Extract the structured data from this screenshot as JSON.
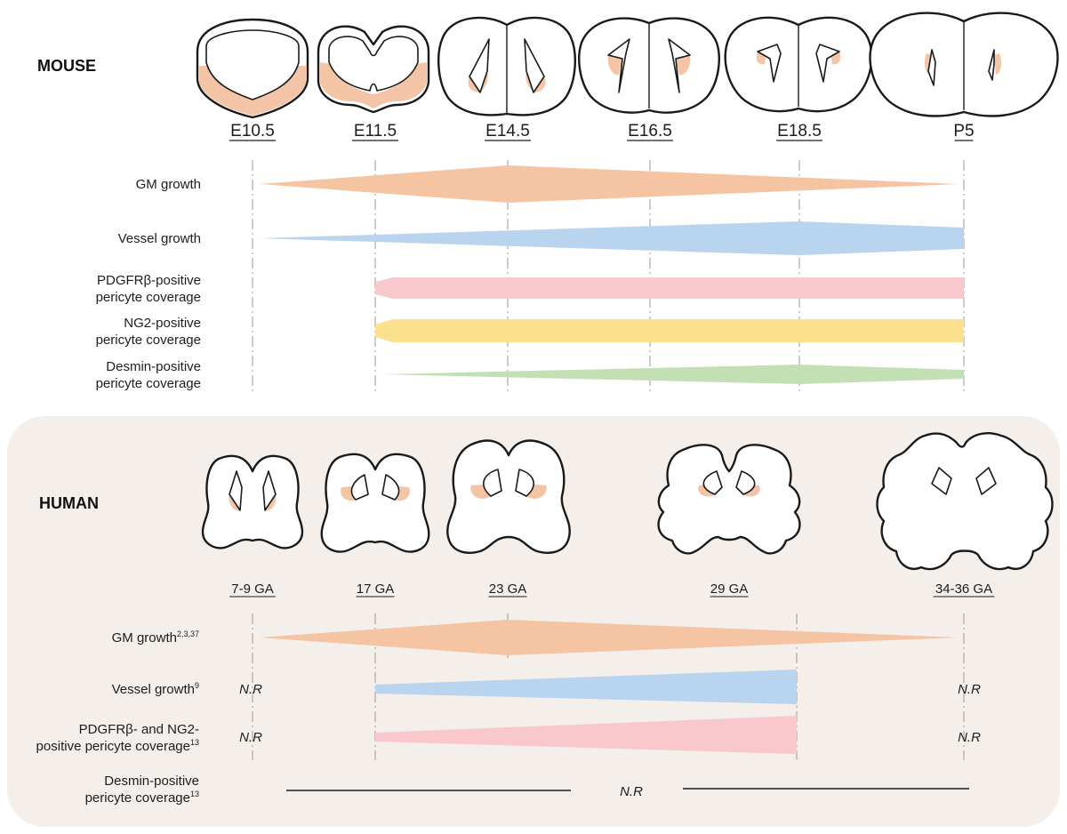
{
  "colors": {
    "gm": "#f5c4a2",
    "vessel": "#b9d4ee",
    "pdgfrb": "#f9c8cd",
    "ng2": "#fbe08e",
    "desmin": "#c3e0b4",
    "human_panel": "#f4efea",
    "ganglionic_eminence": "#f3c5a6"
  },
  "mouse": {
    "species_label": "MOUSE",
    "stages": [
      "E10.5",
      "E11.5",
      "E14.5",
      "E16.5",
      "E18.5",
      "P5"
    ],
    "rows": [
      {
        "key": "gm",
        "lines": [
          "GM growth"
        ]
      },
      {
        "key": "vessel",
        "lines": [
          "Vessel growth"
        ]
      },
      {
        "key": "pdgfrb",
        "lines": [
          "PDGFRβ-positive",
          "pericyte coverage"
        ]
      },
      {
        "key": "ng2",
        "lines": [
          "NG2-positive",
          "pericyte coverage"
        ]
      },
      {
        "key": "desmin",
        "lines": [
          "Desmin-positive",
          "pericyte coverage"
        ]
      }
    ]
  },
  "human": {
    "species_label": "HUMAN",
    "stages": [
      "7-9 GA",
      "17 GA",
      "23 GA",
      "29 GA",
      "34-36 GA"
    ],
    "rows": [
      {
        "key": "gm",
        "lines": [
          "GM growth"
        ],
        "sup": "2,3,37"
      },
      {
        "key": "vessel",
        "lines": [
          "Vessel growth"
        ],
        "sup": "9"
      },
      {
        "key": "pericyte",
        "lines": [
          "PDGFRβ- and NG2-",
          "positive pericyte coverage"
        ],
        "sup": "13"
      },
      {
        "key": "desmin",
        "lines": [
          "Desmin-positive",
          "pericyte coverage"
        ],
        "sup": "13"
      }
    ],
    "not_reported": "N.R"
  }
}
